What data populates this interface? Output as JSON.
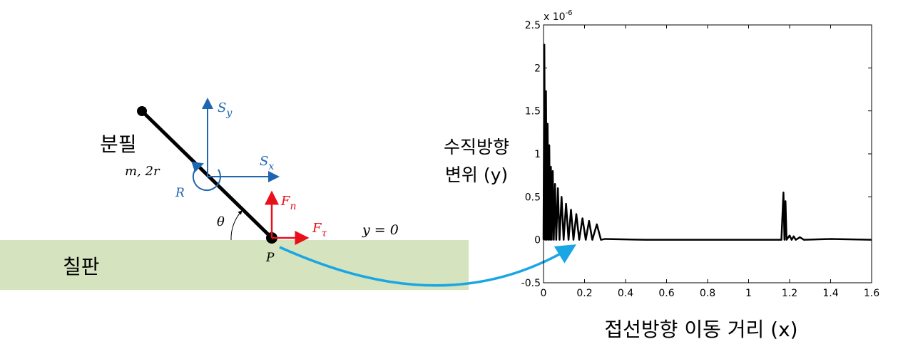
{
  "diagram": {
    "chalk": "분필",
    "mass": "m, 2r",
    "rot": "R",
    "sy": {
      "base": "S",
      "sub": "y"
    },
    "sx": {
      "base": "S",
      "sub": "x"
    },
    "fn": {
      "base": "F",
      "sub": "n"
    },
    "ft": {
      "base": "F",
      "sub": "τ"
    },
    "theta": "θ",
    "point": "P",
    "surface": "y = 0",
    "board": "칠판"
  },
  "chart_data": {
    "type": "line",
    "ylabel": [
      "수직방향",
      "변위 (y)"
    ],
    "xlabel": "접선방향 이동 거리 (x)",
    "multiplier": {
      "base": "x 10",
      "exp": "-6"
    },
    "xlim": [
      0,
      1.6
    ],
    "ylim": [
      -0.5,
      2.5
    ],
    "xticks": [
      0,
      0.2,
      0.4,
      0.6,
      0.8,
      1,
      1.2,
      1.4,
      1.6
    ],
    "yticks": [
      -0.5,
      0,
      0.5,
      1,
      1.5,
      2,
      2.5
    ],
    "color": "#000000",
    "x": [
      0,
      0.004,
      0.008,
      0.012,
      0.016,
      0.02,
      0.024,
      0.028,
      0.032,
      0.036,
      0.04,
      0.045,
      0.05,
      0.056,
      0.062,
      0.07,
      0.078,
      0.088,
      0.098,
      0.11,
      0.122,
      0.134,
      0.146,
      0.16,
      0.174,
      0.19,
      0.206,
      0.222,
      0.238,
      0.26,
      0.28,
      0.3,
      0.5,
      0.8,
      1.16,
      1.17,
      1.175,
      1.18,
      1.185,
      1.2,
      1.21,
      1.22,
      1.23,
      1.25,
      1.27,
      1.4,
      1.6
    ],
    "values": [
      0,
      2.27,
      0,
      1.73,
      0,
      1.35,
      0,
      1.1,
      0,
      0.85,
      0,
      0.8,
      0,
      0.65,
      0,
      0.6,
      0,
      0.5,
      0,
      0.42,
      0,
      0.35,
      0,
      0.3,
      0,
      0.25,
      0,
      0.22,
      0,
      0.18,
      0,
      0.01,
      0,
      0,
      0,
      0.55,
      0,
      0.45,
      0,
      0.05,
      0,
      0.04,
      0,
      0.03,
      0,
      0.01,
      0
    ]
  }
}
